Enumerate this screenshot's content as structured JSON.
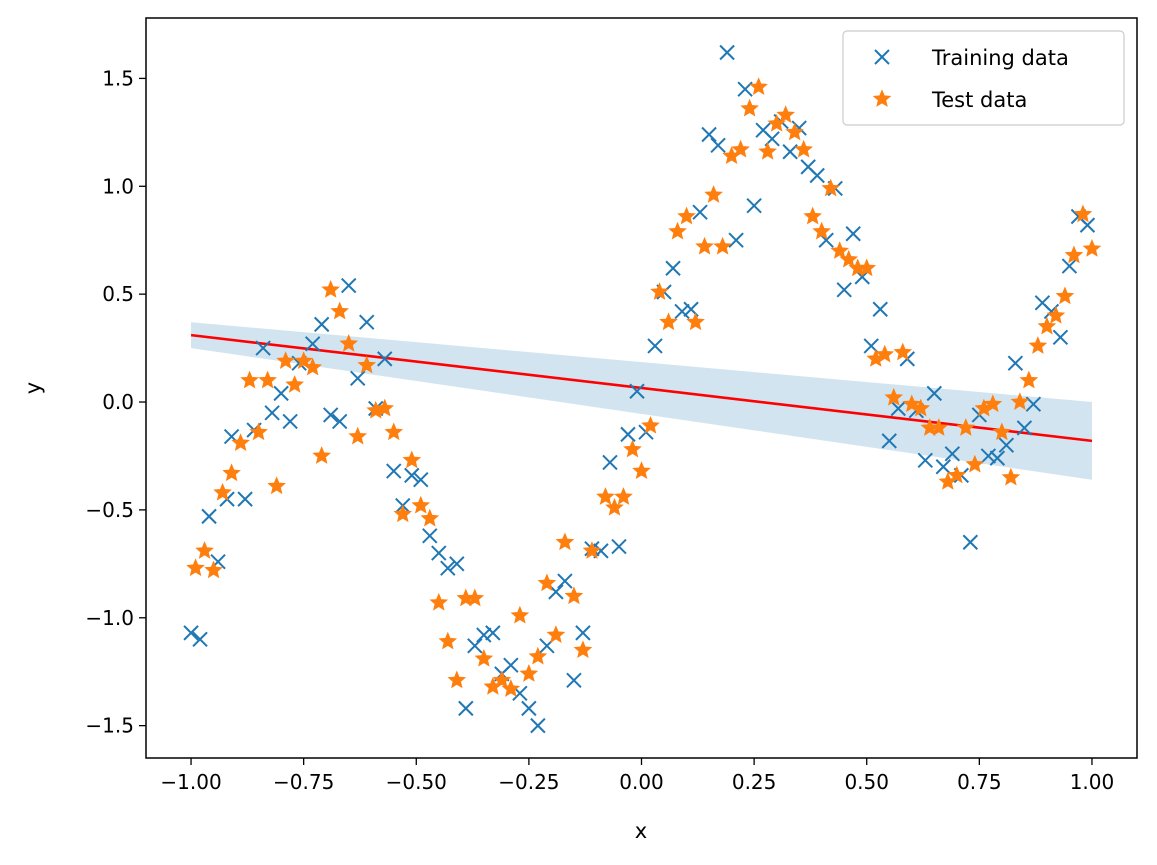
{
  "chart_data": {
    "type": "scatter",
    "title": "",
    "xlabel": "x",
    "ylabel": "y",
    "xlim": [
      -1.1,
      1.1
    ],
    "ylim": [
      -1.65,
      1.78
    ],
    "xticks": [
      -1.0,
      -0.75,
      -0.5,
      -0.25,
      0.0,
      0.25,
      0.5,
      0.75,
      1.0
    ],
    "xtick_labels": [
      "−1.00",
      "−0.75",
      "−0.50",
      "−0.25",
      "0.00",
      "0.25",
      "0.50",
      "0.75",
      "1.00"
    ],
    "yticks": [
      -1.5,
      -1.0,
      -0.5,
      0.0,
      0.5,
      1.0,
      1.5
    ],
    "ytick_labels": [
      "−1.5",
      "−1.0",
      "−0.5",
      "0.0",
      "0.5",
      "1.0",
      "1.5"
    ],
    "grid": false,
    "legend_position": "top-right",
    "series": [
      {
        "name": "Training data",
        "marker": "x",
        "color": "#1f77b4",
        "points": [
          [
            -1.0,
            -1.07
          ],
          [
            -0.98,
            -1.1
          ],
          [
            -0.96,
            -0.53
          ],
          [
            -0.94,
            -0.74
          ],
          [
            -0.92,
            -0.45
          ],
          [
            -0.91,
            -0.16
          ],
          [
            -0.88,
            -0.45
          ],
          [
            -0.86,
            -0.13
          ],
          [
            -0.84,
            0.25
          ],
          [
            -0.82,
            -0.05
          ],
          [
            -0.8,
            0.04
          ],
          [
            -0.78,
            -0.09
          ],
          [
            -0.76,
            0.18
          ],
          [
            -0.73,
            0.27
          ],
          [
            -0.71,
            0.36
          ],
          [
            -0.69,
            -0.06
          ],
          [
            -0.67,
            -0.09
          ],
          [
            -0.65,
            0.54
          ],
          [
            -0.63,
            0.11
          ],
          [
            -0.61,
            0.37
          ],
          [
            -0.59,
            -0.03
          ],
          [
            -0.57,
            0.2
          ],
          [
            -0.55,
            -0.32
          ],
          [
            -0.53,
            -0.48
          ],
          [
            -0.51,
            -0.34
          ],
          [
            -0.49,
            -0.36
          ],
          [
            -0.47,
            -0.62
          ],
          [
            -0.45,
            -0.7
          ],
          [
            -0.43,
            -0.77
          ],
          [
            -0.41,
            -0.75
          ],
          [
            -0.39,
            -1.42
          ],
          [
            -0.37,
            -1.13
          ],
          [
            -0.35,
            -1.08
          ],
          [
            -0.33,
            -1.07
          ],
          [
            -0.31,
            -1.26
          ],
          [
            -0.29,
            -1.22
          ],
          [
            -0.27,
            -1.35
          ],
          [
            -0.25,
            -1.42
          ],
          [
            -0.23,
            -1.5
          ],
          [
            -0.21,
            -1.13
          ],
          [
            -0.19,
            -0.88
          ],
          [
            -0.17,
            -0.83
          ],
          [
            -0.15,
            -1.29
          ],
          [
            -0.13,
            -1.07
          ],
          [
            -0.11,
            -0.68
          ],
          [
            -0.09,
            -0.69
          ],
          [
            -0.07,
            -0.28
          ],
          [
            -0.05,
            -0.67
          ],
          [
            -0.03,
            -0.15
          ],
          [
            -0.01,
            0.05
          ],
          [
            0.01,
            -0.14
          ],
          [
            0.03,
            0.26
          ],
          [
            0.05,
            0.51
          ],
          [
            0.07,
            0.62
          ],
          [
            0.09,
            0.42
          ],
          [
            0.11,
            0.43
          ],
          [
            0.13,
            0.88
          ],
          [
            0.15,
            1.24
          ],
          [
            0.17,
            1.19
          ],
          [
            0.19,
            1.62
          ],
          [
            0.21,
            0.75
          ],
          [
            0.23,
            1.45
          ],
          [
            0.25,
            0.91
          ],
          [
            0.27,
            1.26
          ],
          [
            0.29,
            1.22
          ],
          [
            0.31,
            1.3
          ],
          [
            0.33,
            1.16
          ],
          [
            0.35,
            1.27
          ],
          [
            0.37,
            1.09
          ],
          [
            0.39,
            1.05
          ],
          [
            0.41,
            0.75
          ],
          [
            0.43,
            0.99
          ],
          [
            0.45,
            0.52
          ],
          [
            0.47,
            0.78
          ],
          [
            0.49,
            0.58
          ],
          [
            0.51,
            0.26
          ],
          [
            0.53,
            0.43
          ],
          [
            0.55,
            -0.18
          ],
          [
            0.57,
            -0.03
          ],
          [
            0.59,
            0.2
          ],
          [
            0.61,
            -0.04
          ],
          [
            0.63,
            -0.27
          ],
          [
            0.65,
            0.04
          ],
          [
            0.67,
            -0.3
          ],
          [
            0.69,
            -0.24
          ],
          [
            0.71,
            -0.34
          ],
          [
            0.73,
            -0.65
          ],
          [
            0.75,
            -0.06
          ],
          [
            0.77,
            -0.25
          ],
          [
            0.79,
            -0.26
          ],
          [
            0.81,
            -0.2
          ],
          [
            0.83,
            0.18
          ],
          [
            0.85,
            -0.12
          ],
          [
            0.87,
            -0.01
          ],
          [
            0.89,
            0.46
          ],
          [
            0.91,
            0.42
          ],
          [
            0.93,
            0.3
          ],
          [
            0.95,
            0.63
          ],
          [
            0.97,
            0.86
          ],
          [
            0.99,
            0.82
          ]
        ]
      },
      {
        "name": "Test data",
        "marker": "*",
        "color": "#ff7f0e",
        "points": [
          [
            -0.99,
            -0.77
          ],
          [
            -0.97,
            -0.69
          ],
          [
            -0.95,
            -0.78
          ],
          [
            -0.93,
            -0.42
          ],
          [
            -0.91,
            -0.33
          ],
          [
            -0.89,
            -0.19
          ],
          [
            -0.87,
            0.1
          ],
          [
            -0.85,
            -0.14
          ],
          [
            -0.83,
            0.1
          ],
          [
            -0.81,
            -0.39
          ],
          [
            -0.79,
            0.19
          ],
          [
            -0.77,
            0.08
          ],
          [
            -0.75,
            0.19
          ],
          [
            -0.73,
            0.16
          ],
          [
            -0.71,
            -0.25
          ],
          [
            -0.69,
            0.52
          ],
          [
            -0.67,
            0.42
          ],
          [
            -0.65,
            0.27
          ],
          [
            -0.63,
            -0.16
          ],
          [
            -0.61,
            0.17
          ],
          [
            -0.59,
            -0.04
          ],
          [
            -0.57,
            -0.03
          ],
          [
            -0.55,
            -0.14
          ],
          [
            -0.53,
            -0.52
          ],
          [
            -0.51,
            -0.27
          ],
          [
            -0.49,
            -0.48
          ],
          [
            -0.47,
            -0.54
          ],
          [
            -0.45,
            -0.93
          ],
          [
            -0.43,
            -1.11
          ],
          [
            -0.41,
            -1.29
          ],
          [
            -0.39,
            -0.91
          ],
          [
            -0.37,
            -0.91
          ],
          [
            -0.35,
            -1.19
          ],
          [
            -0.33,
            -1.32
          ],
          [
            -0.31,
            -1.29
          ],
          [
            -0.29,
            -1.33
          ],
          [
            -0.27,
            -0.99
          ],
          [
            -0.25,
            -1.26
          ],
          [
            -0.23,
            -1.18
          ],
          [
            -0.21,
            -0.84
          ],
          [
            -0.19,
            -1.08
          ],
          [
            -0.17,
            -0.65
          ],
          [
            -0.15,
            -0.9
          ],
          [
            -0.13,
            -1.15
          ],
          [
            -0.11,
            -0.69
          ],
          [
            -0.08,
            -0.44
          ],
          [
            -0.06,
            -0.49
          ],
          [
            -0.04,
            -0.44
          ],
          [
            -0.02,
            -0.22
          ],
          [
            0.0,
            -0.32
          ],
          [
            0.02,
            -0.11
          ],
          [
            0.04,
            0.51
          ],
          [
            0.06,
            0.37
          ],
          [
            0.08,
            0.79
          ],
          [
            0.1,
            0.86
          ],
          [
            0.12,
            0.37
          ],
          [
            0.14,
            0.72
          ],
          [
            0.16,
            0.96
          ],
          [
            0.18,
            0.72
          ],
          [
            0.2,
            1.14
          ],
          [
            0.22,
            1.17
          ],
          [
            0.24,
            1.36
          ],
          [
            0.26,
            1.46
          ],
          [
            0.28,
            1.16
          ],
          [
            0.3,
            1.29
          ],
          [
            0.32,
            1.33
          ],
          [
            0.34,
            1.25
          ],
          [
            0.36,
            1.17
          ],
          [
            0.38,
            0.86
          ],
          [
            0.4,
            0.79
          ],
          [
            0.42,
            0.99
          ],
          [
            0.44,
            0.7
          ],
          [
            0.46,
            0.66
          ],
          [
            0.48,
            0.62
          ],
          [
            0.5,
            0.62
          ],
          [
            0.52,
            0.2
          ],
          [
            0.54,
            0.22
          ],
          [
            0.56,
            0.02
          ],
          [
            0.58,
            0.23
          ],
          [
            0.6,
            -0.01
          ],
          [
            0.62,
            -0.03
          ],
          [
            0.64,
            -0.12
          ],
          [
            0.66,
            -0.12
          ],
          [
            0.68,
            -0.37
          ],
          [
            0.7,
            -0.34
          ],
          [
            0.72,
            -0.12
          ],
          [
            0.74,
            -0.29
          ],
          [
            0.76,
            -0.03
          ],
          [
            0.78,
            -0.01
          ],
          [
            0.8,
            -0.14
          ],
          [
            0.82,
            -0.35
          ],
          [
            0.84,
            0.0
          ],
          [
            0.86,
            0.1
          ],
          [
            0.88,
            0.26
          ],
          [
            0.9,
            0.35
          ],
          [
            0.92,
            0.4
          ],
          [
            0.94,
            0.49
          ],
          [
            0.96,
            0.68
          ],
          [
            0.98,
            0.87
          ],
          [
            1.0,
            0.71
          ]
        ]
      }
    ],
    "fit_line": {
      "color": "#ff0000",
      "x": [
        -1.0,
        1.0
      ],
      "y": [
        0.31,
        -0.18
      ]
    },
    "confidence_band": {
      "color": "#1f77b4",
      "x": [
        -1.0,
        1.0
      ],
      "upper": [
        0.37,
        0.0
      ],
      "lower": [
        0.25,
        -0.36
      ]
    }
  }
}
